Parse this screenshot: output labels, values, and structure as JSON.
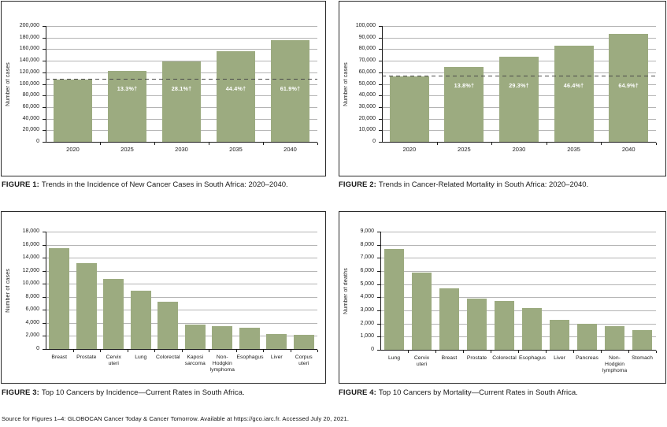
{
  "page": {
    "source_note": "Source for Figures 1–4: GLOBOCAN Cancer Today & Cancer Tomorrow. Available at https://gco.iarc.fr. Accessed July 20, 2021."
  },
  "colors": {
    "bar_fill": "#9cab80",
    "gridline": "#b4b4b4",
    "axis": "#1a1a1a",
    "dashed_line": "#4a4a4a",
    "bar_label_text": "#ffffff",
    "panel_border": "#2a2a2a"
  },
  "chart_data": [
    {
      "type": "bar",
      "figure": "FIGURE 1:",
      "title": "Trends in the Incidence of New Cancer Cases in South Africa: 2020–2040.",
      "ylabel": "Number of cases",
      "ylim": [
        0,
        200000
      ],
      "ytick_step": 20000,
      "grid": "on",
      "legend": "none",
      "categories": [
        "2020",
        "2025",
        "2030",
        "2035",
        "2040"
      ],
      "values": [
        108000,
        122400,
        138400,
        156000,
        175000
      ],
      "bar_labels": [
        "",
        "13.3%†",
        "28.1%†",
        "44.4%†",
        "61.9%†"
      ],
      "dashed_baseline_value": 108000
    },
    {
      "type": "bar",
      "figure": "FIGURE 2:",
      "title": "Trends in Cancer-Related Mortality in South Africa: 2020–2040.",
      "ylabel": "Number of cases",
      "ylim": [
        0,
        100000
      ],
      "ytick_step": 10000,
      "grid": "on",
      "legend": "none",
      "categories": [
        "2020",
        "2025",
        "2030",
        "2035",
        "2040"
      ],
      "values": [
        56700,
        64500,
        73300,
        83000,
        93500
      ],
      "bar_labels": [
        "",
        "13.8%†",
        "29.3%†",
        "46.4%†",
        "64.9%†"
      ],
      "dashed_baseline_value": 56700
    },
    {
      "type": "bar",
      "figure": "FIGURE 3:",
      "title": "Top 10 Cancers by Incidence—Current Rates in South Africa.",
      "ylabel": "Number of cases",
      "ylim": [
        0,
        18000
      ],
      "ytick_step": 2000,
      "grid": "on",
      "legend": "none",
      "categories": [
        "Breast",
        "Prostate",
        "Cervix\nuteri",
        "Lung",
        "Colorectal",
        "Kaposi\nsarcoma",
        "Non-\nHodgkin\nlymphoma",
        "Esophagus",
        "Liver",
        "Corpus\nuteri"
      ],
      "values": [
        15500,
        13200,
        10700,
        8900,
        7300,
        3800,
        3500,
        3300,
        2300,
        2200
      ]
    },
    {
      "type": "bar",
      "figure": "FIGURE 4:",
      "title": "Top 10 Cancers by Mortality—Current Rates in South Africa.",
      "ylabel": "Number of deaths",
      "ylim": [
        0,
        9000
      ],
      "ytick_step": 1000,
      "grid": "on",
      "legend": "none",
      "categories": [
        "Lung",
        "Cervix\nuteri",
        "Breast",
        "Prostate",
        "Colorectal",
        "Esophagus",
        "Liver",
        "Pancreas",
        "Non-\nHodgkin\nlymphoma",
        "Stomach"
      ],
      "values": [
        7700,
        5900,
        4700,
        3900,
        3700,
        3200,
        2300,
        2000,
        1800,
        1500
      ]
    }
  ]
}
